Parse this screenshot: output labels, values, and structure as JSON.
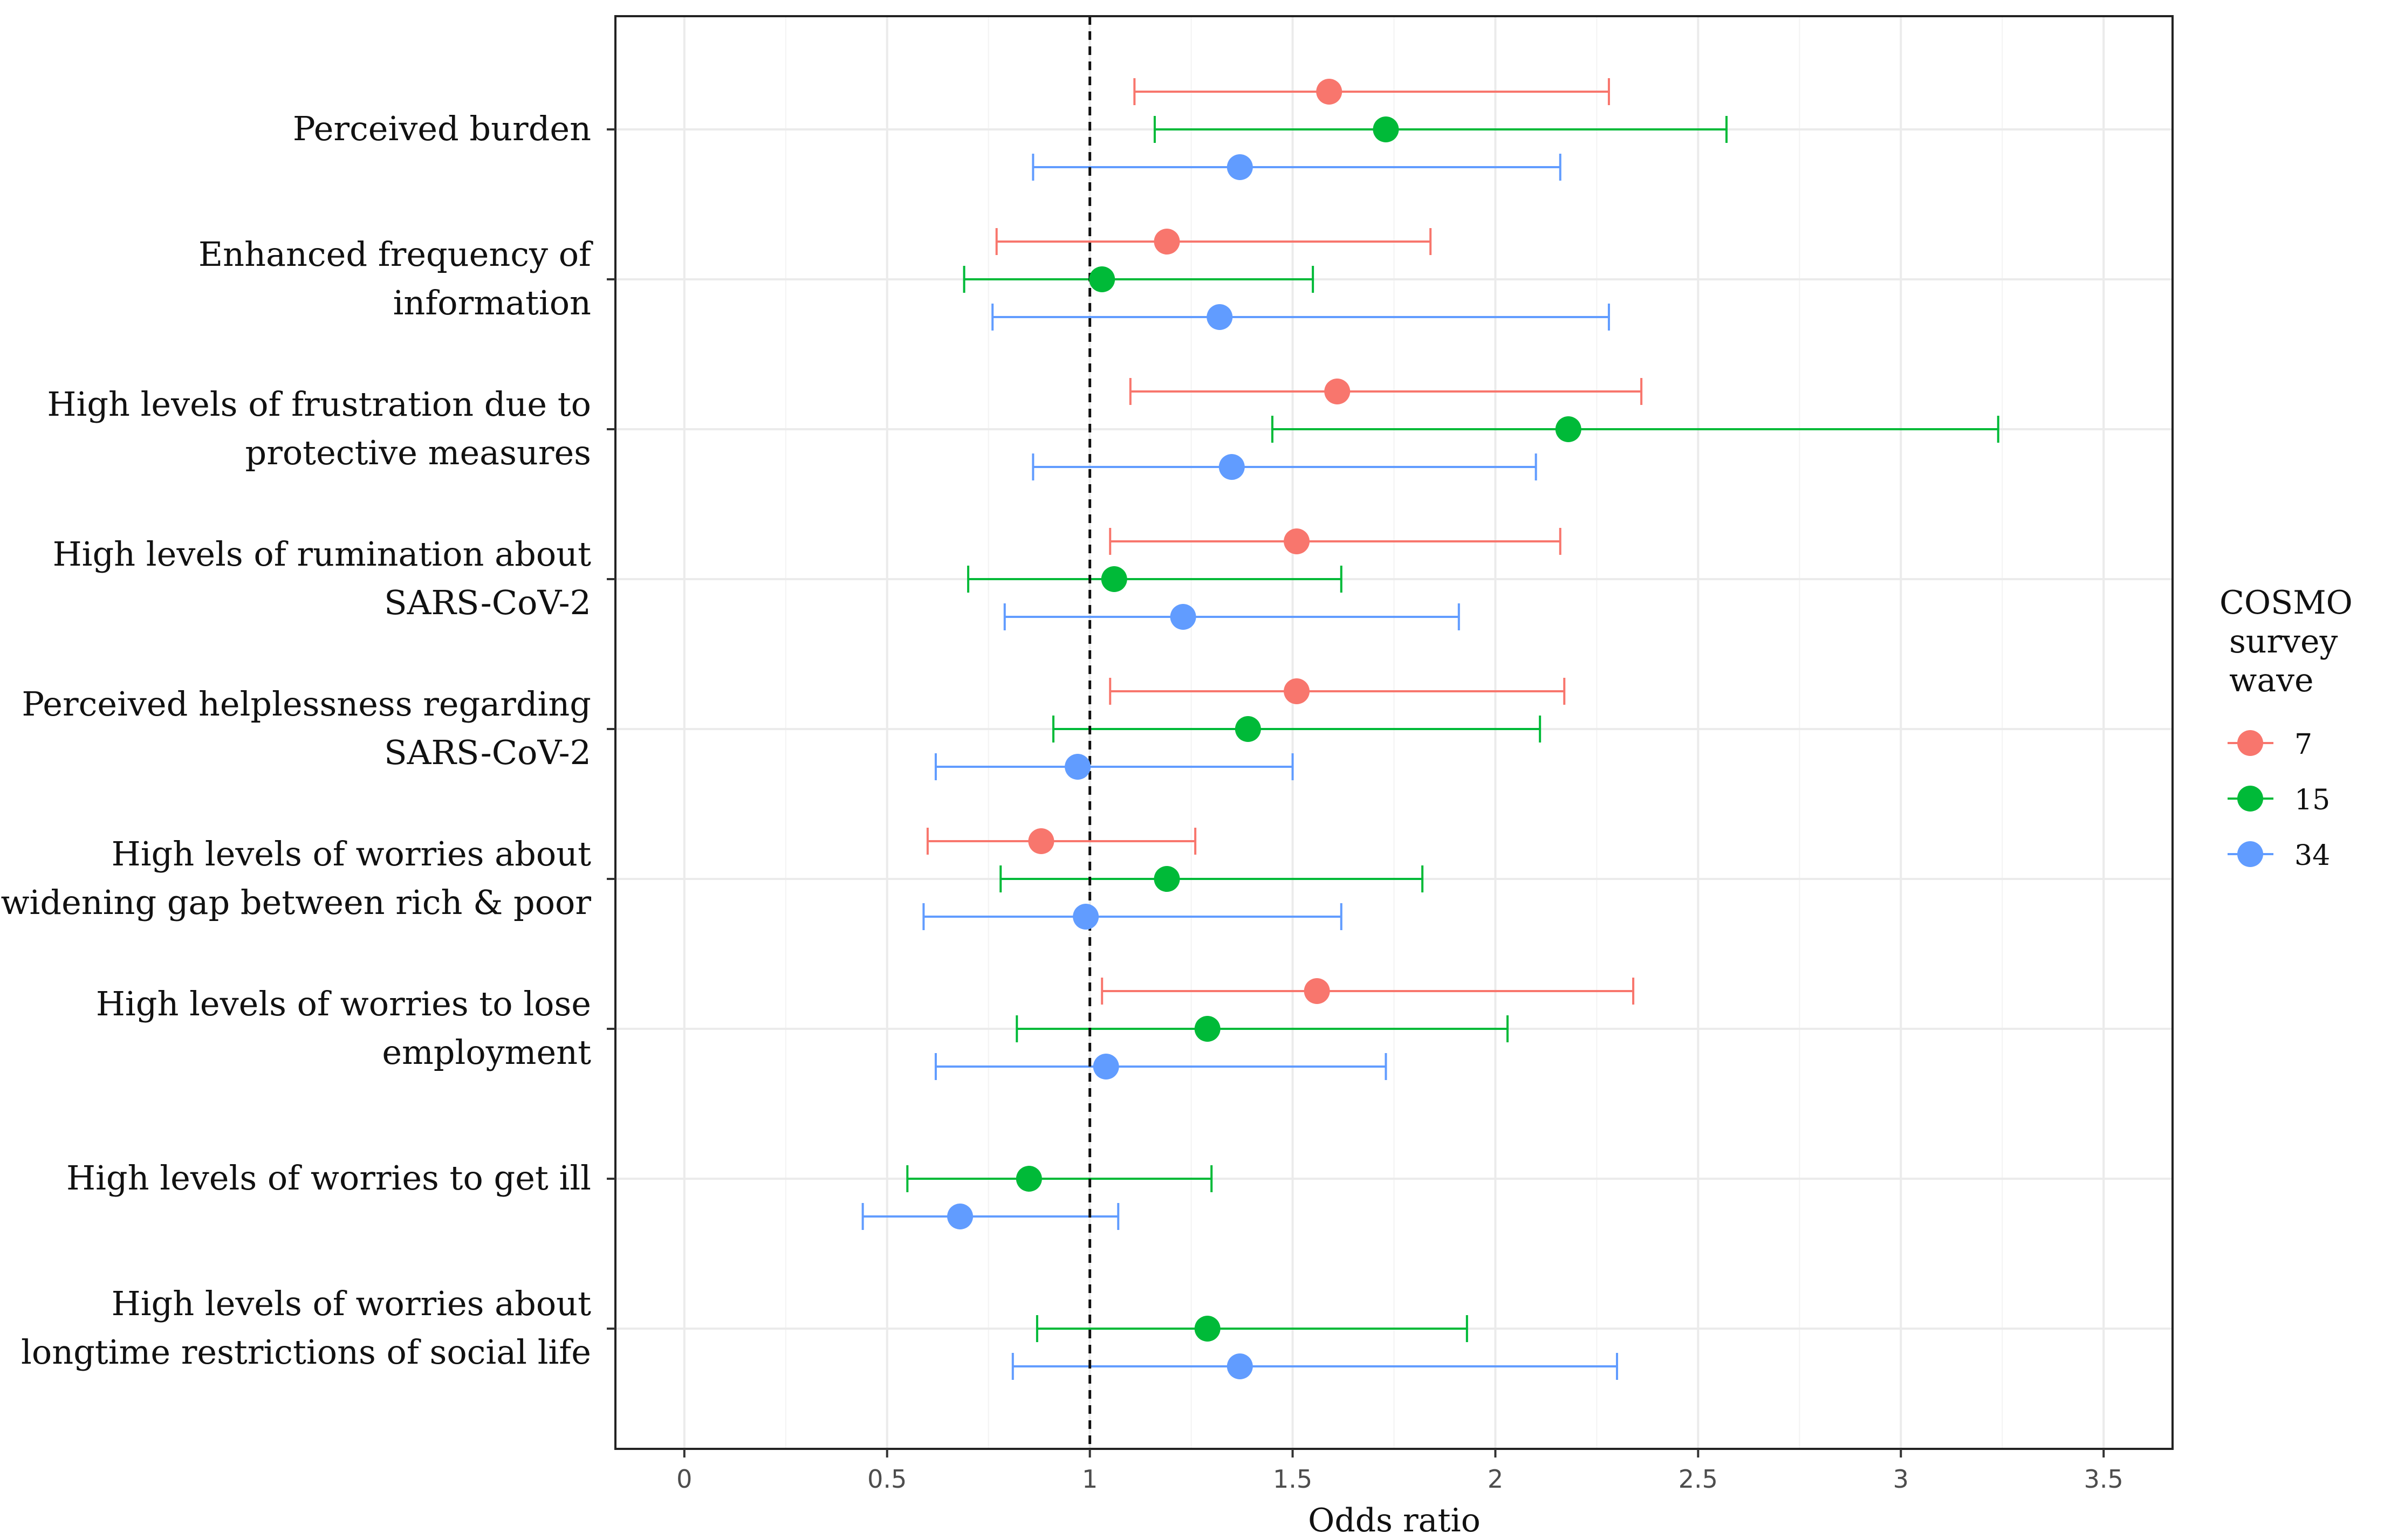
{
  "chart_data": {
    "type": "forest",
    "xlabel": "Odds ratio",
    "xlim": [
      -0.17,
      3.67
    ],
    "x_ticks": [
      0,
      0.5,
      1,
      1.5,
      2,
      2.5,
      3,
      3.5
    ],
    "x_tick_labels": [
      "0",
      "0.5",
      "1",
      "1.5",
      "2",
      "2.5",
      "3",
      "3.5"
    ],
    "reference_line": 1,
    "grid": true,
    "legend": {
      "title_lines": [
        "COSMO",
        "survey",
        "wave"
      ],
      "placement": "right",
      "entries": [
        {
          "label": "7",
          "color": "#F8766D"
        },
        {
          "label": "15",
          "color": "#00BA38"
        },
        {
          "label": "34",
          "color": "#619CFF"
        }
      ]
    },
    "categories": [
      {
        "label_lines": [
          "Perceived burden"
        ],
        "points": [
          {
            "wave": "7",
            "or": 1.59,
            "lo": 1.11,
            "hi": 2.28
          },
          {
            "wave": "15",
            "or": 1.73,
            "lo": 1.16,
            "hi": 2.57
          },
          {
            "wave": "34",
            "or": 1.37,
            "lo": 0.86,
            "hi": 2.16
          }
        ]
      },
      {
        "label_lines": [
          "Enhanced frequency of",
          "information"
        ],
        "points": [
          {
            "wave": "7",
            "or": 1.19,
            "lo": 0.77,
            "hi": 1.84
          },
          {
            "wave": "15",
            "or": 1.03,
            "lo": 0.69,
            "hi": 1.55
          },
          {
            "wave": "34",
            "or": 1.32,
            "lo": 0.76,
            "hi": 2.28
          }
        ]
      },
      {
        "label_lines": [
          "High levels of frustration due to",
          "protective measures"
        ],
        "points": [
          {
            "wave": "7",
            "or": 1.61,
            "lo": 1.1,
            "hi": 2.36
          },
          {
            "wave": "15",
            "or": 2.18,
            "lo": 1.45,
            "hi": 3.24
          },
          {
            "wave": "34",
            "or": 1.35,
            "lo": 0.86,
            "hi": 2.1
          }
        ]
      },
      {
        "label_lines": [
          "High levels of rumination about",
          "SARS-CoV-2"
        ],
        "points": [
          {
            "wave": "7",
            "or": 1.51,
            "lo": 1.05,
            "hi": 2.16
          },
          {
            "wave": "15",
            "or": 1.06,
            "lo": 0.7,
            "hi": 1.62
          },
          {
            "wave": "34",
            "or": 1.23,
            "lo": 0.79,
            "hi": 1.91
          }
        ]
      },
      {
        "label_lines": [
          "Perceived helplessness regarding",
          "SARS-CoV-2"
        ],
        "points": [
          {
            "wave": "7",
            "or": 1.51,
            "lo": 1.05,
            "hi": 2.17
          },
          {
            "wave": "15",
            "or": 1.39,
            "lo": 0.91,
            "hi": 2.11
          },
          {
            "wave": "34",
            "or": 0.97,
            "lo": 0.62,
            "hi": 1.5
          }
        ]
      },
      {
        "label_lines": [
          "High levels of worries about",
          "widening gap between rich & poor"
        ],
        "points": [
          {
            "wave": "7",
            "or": 0.88,
            "lo": 0.6,
            "hi": 1.26
          },
          {
            "wave": "15",
            "or": 1.19,
            "lo": 0.78,
            "hi": 1.82
          },
          {
            "wave": "34",
            "or": 0.99,
            "lo": 0.59,
            "hi": 1.62
          }
        ]
      },
      {
        "label_lines": [
          "High levels of worries to lose",
          "employment"
        ],
        "points": [
          {
            "wave": "7",
            "or": 1.56,
            "lo": 1.03,
            "hi": 2.34
          },
          {
            "wave": "15",
            "or": 1.29,
            "lo": 0.82,
            "hi": 2.03
          },
          {
            "wave": "34",
            "or": 1.04,
            "lo": 0.62,
            "hi": 1.73
          }
        ]
      },
      {
        "label_lines": [
          "High levels of worries to get ill"
        ],
        "points": [
          {
            "wave": "15",
            "or": 0.85,
            "lo": 0.55,
            "hi": 1.3
          },
          {
            "wave": "34",
            "or": 0.68,
            "lo": 0.44,
            "hi": 1.07
          }
        ]
      },
      {
        "label_lines": [
          "High levels of worries about",
          "longtime restrictions of social life"
        ],
        "points": [
          {
            "wave": "15",
            "or": 1.29,
            "lo": 0.87,
            "hi": 1.93
          },
          {
            "wave": "34",
            "or": 1.37,
            "lo": 0.81,
            "hi": 2.3
          }
        ]
      }
    ]
  }
}
